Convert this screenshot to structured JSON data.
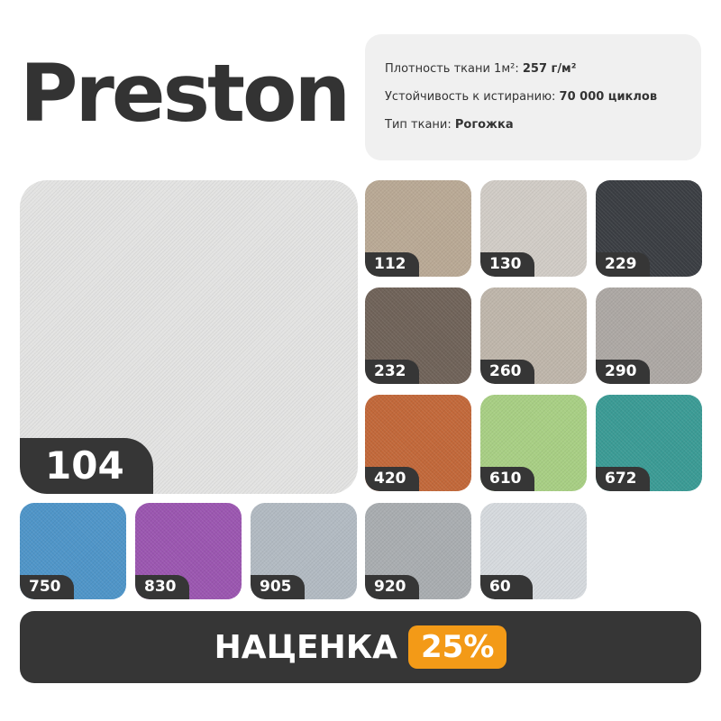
{
  "title": "Preston",
  "specs": {
    "density_label": "Плотность ткани 1м²: ",
    "density_value": "257 г/м²",
    "abrasion_label": "Устойчивость к истиранию: ",
    "abrasion_value": "70 000 циклов",
    "type_label": "Тип ткани: ",
    "type_value": "Рогожка"
  },
  "main_swatch": {
    "code": "104",
    "color": "#e3e3e2"
  },
  "swatches": [
    {
      "code": "112",
      "color": "#b9a995"
    },
    {
      "code": "130",
      "color": "#d1ccc6"
    },
    {
      "code": "229",
      "color": "#3b3e43"
    },
    {
      "code": "232",
      "color": "#706359"
    },
    {
      "code": "260",
      "color": "#bfb6ab"
    },
    {
      "code": "290",
      "color": "#ada8a4"
    },
    {
      "code": "420",
      "color": "#c2683a"
    },
    {
      "code": "610",
      "color": "#a8cf84"
    },
    {
      "code": "672",
      "color": "#3b9b95"
    },
    {
      "code": "750",
      "color": "#4f95c8"
    },
    {
      "code": "830",
      "color": "#9b56b0"
    },
    {
      "code": "905",
      "color": "#b2bac2"
    },
    {
      "code": "920",
      "color": "#a9adb0"
    },
    {
      "code": "60",
      "color": "#d6dade"
    }
  ],
  "banner": {
    "label": "НАЦЕНКА",
    "markup": "25%",
    "accent": "#f39a17"
  }
}
